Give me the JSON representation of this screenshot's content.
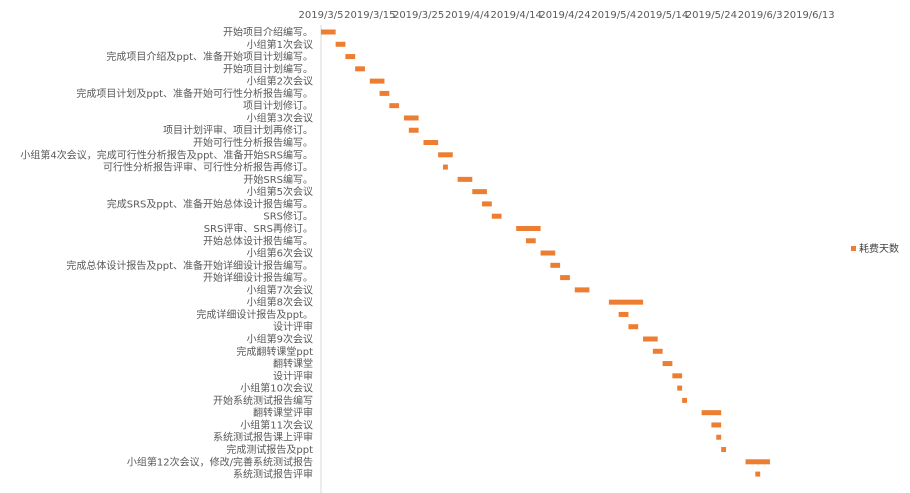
{
  "chart_data": {
    "type": "bar",
    "orientation": "horizontal",
    "x_axis_position": "top",
    "x_tick_labels": [
      "2019/3/5",
      "2019/3/15",
      "2019/3/25",
      "2019/4/4",
      "2019/4/14",
      "2019/4/24",
      "2019/5/4",
      "2019/5/14",
      "2019/5/24",
      "2019/6/3",
      "2019/6/13"
    ],
    "xlim": [
      "2019-03-05",
      "2019-06-17"
    ],
    "grid": false,
    "legend": {
      "position": "right",
      "entries": [
        "耗费天数"
      ]
    },
    "series": [
      {
        "name": "耗费天数",
        "color": "#ED7D31"
      }
    ],
    "tasks": [
      {
        "label": "开始项目介绍编写。",
        "start": "2019-03-05",
        "days": 3
      },
      {
        "label": "小组第1次会议",
        "start": "2019-03-08",
        "days": 2
      },
      {
        "label": "完成项目介绍及ppt、准备开始项目计划编写。",
        "start": "2019-03-10",
        "days": 2
      },
      {
        "label": "开始项目计划编写。",
        "start": "2019-03-12",
        "days": 2
      },
      {
        "label": "小组第2次会议",
        "start": "2019-03-15",
        "days": 3
      },
      {
        "label": "完成项目计划及ppt、准备开始可行性分析报告编写。",
        "start": "2019-03-17",
        "days": 2
      },
      {
        "label": "项目计划修订。",
        "start": "2019-03-19",
        "days": 2
      },
      {
        "label": "小组第3次会议",
        "start": "2019-03-22",
        "days": 3
      },
      {
        "label": "项目计划评审、项目计划再修订。",
        "start": "2019-03-23",
        "days": 2
      },
      {
        "label": "开始可行性分析报告编写。",
        "start": "2019-03-26",
        "days": 3
      },
      {
        "label": "小组第4次会议，完成可行性分析报告及ppt、准备开始SRS编写。",
        "start": "2019-03-29",
        "days": 3
      },
      {
        "label": "可行性分析报告评审、可行性分析报告再修订。",
        "start": "2019-03-30",
        "days": 1
      },
      {
        "label": "开始SRS编写。",
        "start": "2019-04-02",
        "days": 3
      },
      {
        "label": "小组第5次会议",
        "start": "2019-04-05",
        "days": 3
      },
      {
        "label": "完成SRS及ppt、准备开始总体设计报告编写。",
        "start": "2019-04-07",
        "days": 2
      },
      {
        "label": "SRS修订。",
        "start": "2019-04-09",
        "days": 2
      },
      {
        "label": "SRS评审、SRS再修订。",
        "start": "2019-04-14",
        "days": 5
      },
      {
        "label": "开始总体设计报告编写。",
        "start": "2019-04-16",
        "days": 2
      },
      {
        "label": "小组第6次会议",
        "start": "2019-04-19",
        "days": 3
      },
      {
        "label": "完成总体设计报告及ppt、准备开始详细设计报告编写。",
        "start": "2019-04-21",
        "days": 2
      },
      {
        "label": "开始详细设计报告编写。",
        "start": "2019-04-23",
        "days": 2
      },
      {
        "label": "小组第7次会议",
        "start": "2019-04-26",
        "days": 3
      },
      {
        "label": "小组第8次会议",
        "start": "2019-05-03",
        "days": 7
      },
      {
        "label": "完成详细设计报告及ppt。",
        "start": "2019-05-05",
        "days": 2
      },
      {
        "label": "设计评审",
        "start": "2019-05-07",
        "days": 2
      },
      {
        "label": "小组第9次会议",
        "start": "2019-05-10",
        "days": 3
      },
      {
        "label": "完成翻转课堂ppt",
        "start": "2019-05-12",
        "days": 2
      },
      {
        "label": "翻转课堂",
        "start": "2019-05-14",
        "days": 2
      },
      {
        "label": "设计评审",
        "start": "2019-05-16",
        "days": 2
      },
      {
        "label": "小组第10次会议",
        "start": "2019-05-17",
        "days": 1
      },
      {
        "label": "开始系统测试报告编写",
        "start": "2019-05-18",
        "days": 1
      },
      {
        "label": "翻转课堂评审",
        "start": "2019-05-22",
        "days": 4
      },
      {
        "label": "小组第11次会议",
        "start": "2019-05-24",
        "days": 2
      },
      {
        "label": "系统测试报告课上评审",
        "start": "2019-05-25",
        "days": 1
      },
      {
        "label": "完成测试报告及ppt",
        "start": "2019-05-26",
        "days": 1
      },
      {
        "label": "小组第12次会议，修改/完善系统测试报告",
        "start": "2019-05-31",
        "days": 5
      },
      {
        "label": "系统测试报告评审",
        "start": "2019-06-02",
        "days": 1
      }
    ]
  }
}
